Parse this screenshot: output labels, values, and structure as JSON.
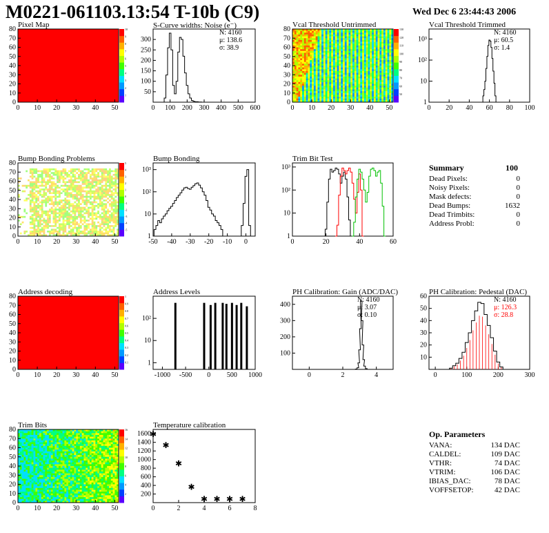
{
  "header": {
    "title": "M0221-061103.13:54 T-10b (C9)",
    "date": "Wed Dec  6 23:44:43 2006"
  },
  "chart_data": [
    {
      "id": "pixel-map",
      "type": "heatmap",
      "title": "Pixel Map",
      "x_ticks": [
        "0",
        "10",
        "20",
        "30",
        "40",
        "50"
      ],
      "y_ticks": [
        "0",
        "10",
        "20",
        "30",
        "40",
        "50",
        "60",
        "70",
        "80"
      ],
      "xlim": [
        0,
        52
      ],
      "ylim": [
        0,
        80
      ],
      "fill": "#ff0000",
      "uniform_value": 10,
      "palette_labels": [
        "1",
        "2",
        "3",
        "4",
        "5",
        "6",
        "7",
        "8",
        "9",
        "10"
      ]
    },
    {
      "id": "scurve-noise",
      "type": "line",
      "title": "S-Curve widths: Noise (e⁻)",
      "x_ticks": [
        "0",
        "100",
        "200",
        "300",
        "400",
        "500",
        "600"
      ],
      "y_ticks": [
        "50",
        "100",
        "150",
        "200",
        "250",
        "300"
      ],
      "xlim": [
        0,
        600
      ],
      "ylim": [
        0,
        350
      ],
      "x": [
        60,
        70,
        80,
        90,
        100,
        110,
        120,
        130,
        140,
        150,
        160,
        170,
        180,
        190,
        200,
        210,
        220,
        230,
        240,
        250,
        260,
        270,
        280,
        290,
        300
      ],
      "values": [
        0,
        20,
        130,
        260,
        330,
        250,
        80,
        40,
        100,
        240,
        310,
        300,
        220,
        140,
        80,
        40,
        20,
        8,
        4,
        2,
        2,
        1,
        1,
        0,
        0
      ],
      "stats": {
        "n": "N: 4160",
        "mu": "μ: 138.6",
        "sigma": "σ: 38.9"
      }
    },
    {
      "id": "vcal-untrimmed",
      "type": "heatmap",
      "title": "Vcal Threshold Untrimmed",
      "x_ticks": [
        "0",
        "10",
        "20",
        "30",
        "40",
        "50"
      ],
      "y_ticks": [
        "0",
        "10",
        "20",
        "30",
        "40",
        "50",
        "60",
        "70",
        "80"
      ],
      "xlim": [
        0,
        52
      ],
      "ylim": [
        0,
        80
      ],
      "palette_labels": [
        "50",
        "60",
        "70",
        "80",
        "90",
        "100",
        "110",
        "120",
        "130"
      ]
    },
    {
      "id": "vcal-trimmed",
      "type": "line",
      "title": "Vcal Threshold Trimmed",
      "x_ticks": [
        "0",
        "20",
        "40",
        "60",
        "80",
        "100"
      ],
      "y_ticks": [
        "1",
        "10",
        "10²",
        "10³"
      ],
      "xlim": [
        0,
        100
      ],
      "ylim_log": [
        1,
        3000
      ],
      "x": [
        52,
        53,
        54,
        55,
        56,
        57,
        58,
        59,
        60,
        61,
        62,
        63,
        64,
        65,
        66,
        67
      ],
      "values": [
        1,
        0,
        2,
        4,
        10,
        40,
        150,
        500,
        900,
        800,
        400,
        120,
        30,
        8,
        2,
        1
      ],
      "stats": {
        "n": "N: 4160",
        "mu": "μ: 60.5",
        "sigma": "σ:  1.4"
      }
    },
    {
      "id": "bump-problems",
      "type": "heatmap",
      "title": "Bump Bonding Problems",
      "x_ticks": [
        "0",
        "10",
        "20",
        "30",
        "40",
        "50"
      ],
      "y_ticks": [
        "0",
        "10",
        "20",
        "30",
        "40",
        "50",
        "60",
        "70",
        "80"
      ],
      "xlim": [
        0,
        52
      ],
      "ylim": [
        0,
        80
      ],
      "palette_labels": [
        "-5",
        "-4",
        "-3",
        "-2",
        "-1",
        "0",
        "1",
        "2",
        "3",
        "4",
        "5"
      ]
    },
    {
      "id": "bump-bonding",
      "type": "line",
      "title": "Bump Bonding",
      "x_ticks": [
        "-50",
        "-40",
        "-30",
        "-20",
        "-10",
        "0"
      ],
      "y_ticks": [
        "1",
        "10",
        "10²",
        "10³"
      ],
      "xlim": [
        -50,
        5
      ],
      "ylim_log": [
        1,
        2000
      ],
      "x": [
        -49,
        -48,
        -47,
        -46,
        -45,
        -44,
        -43,
        -42,
        -41,
        -40,
        -39,
        -38,
        -37,
        -36,
        -35,
        -34,
        -33,
        -32,
        -31,
        -30,
        -29,
        -28,
        -27,
        -26,
        -25,
        -24,
        -23,
        -22,
        -21,
        -20,
        -19,
        -18,
        -17,
        -16,
        -15,
        -14,
        -13,
        -12,
        -11,
        -10,
        -9,
        -8,
        -7,
        -6,
        -5,
        -4,
        -3,
        -2,
        -1,
        0,
        1,
        2
      ],
      "values": [
        2,
        3,
        5,
        4,
        6,
        8,
        10,
        14,
        18,
        22,
        30,
        40,
        55,
        70,
        90,
        120,
        150,
        160,
        140,
        130,
        160,
        190,
        230,
        250,
        200,
        150,
        100,
        70,
        40,
        20,
        15,
        10,
        8,
        5,
        4,
        3,
        2,
        1,
        0,
        0,
        0,
        0,
        0,
        0,
        0,
        0,
        1,
        3,
        30,
        500,
        1000,
        3
      ]
    },
    {
      "id": "trim-bit-test",
      "type": "line",
      "title": "Trim Bit Test",
      "x_ticks": [
        "0",
        "20",
        "40",
        "60"
      ],
      "y_ticks": [
        "1",
        "10",
        "10²",
        "10³"
      ],
      "xlim": [
        0,
        60
      ],
      "ylim_log": [
        1,
        1500
      ],
      "series": [
        {
          "color": "#000000",
          "x": [
            19,
            20,
            21,
            22,
            23,
            24,
            25,
            26,
            27,
            28,
            29,
            30,
            31,
            32,
            33,
            34,
            35
          ],
          "values": [
            1,
            2,
            30,
            300,
            800,
            600,
            700,
            900,
            800,
            500,
            200,
            400,
            600,
            300,
            50,
            5,
            1
          ]
        },
        {
          "color": "#ff0000",
          "x": [
            26,
            27,
            28,
            29,
            30,
            31,
            32,
            33,
            34,
            35,
            36,
            37,
            38,
            39,
            40,
            41,
            42
          ],
          "values": [
            1,
            3,
            60,
            400,
            900,
            700,
            500,
            700,
            900,
            600,
            200,
            40,
            10,
            80,
            500,
            100,
            1
          ]
        },
        {
          "color": "#00c000",
          "x": [
            36,
            37,
            38,
            39,
            40,
            41,
            42,
            43,
            44,
            45,
            46,
            47,
            48,
            49,
            50,
            51,
            52,
            53,
            54,
            55
          ],
          "values": [
            1,
            4,
            50,
            300,
            800,
            600,
            300,
            100,
            30,
            80,
            400,
            800,
            900,
            700,
            400,
            600,
            700,
            200,
            20,
            1
          ]
        }
      ]
    },
    {
      "id": "address-decoding",
      "type": "heatmap",
      "title": "Address decoding",
      "x_ticks": [
        "0",
        "10",
        "20",
        "30",
        "40",
        "50"
      ],
      "y_ticks": [
        "0",
        "10",
        "20",
        "30",
        "40",
        "50",
        "60",
        "70",
        "80"
      ],
      "xlim": [
        0,
        52
      ],
      "ylim": [
        0,
        80
      ],
      "fill": "#ff0000",
      "uniform_value": 1,
      "palette_labels": [
        "0.1",
        "0.2",
        "0.3",
        "0.4",
        "0.5",
        "0.6",
        "0.7",
        "0.8",
        "0.9",
        "1"
      ]
    },
    {
      "id": "address-levels",
      "type": "bar",
      "title": "Address Levels",
      "x_ticks": [
        "-1000",
        "-500",
        "0",
        "500",
        "1000"
      ],
      "y_ticks": [
        "1",
        "10",
        "10²"
      ],
      "xlim": [
        -1200,
        1000
      ],
      "ylim_log": [
        0.5,
        1000
      ],
      "x": [
        -720,
        -100,
        40,
        140,
        300,
        380,
        500,
        600,
        700,
        820
      ],
      "values": [
        500,
        500,
        400,
        500,
        500,
        450,
        500,
        400,
        500,
        350
      ]
    },
    {
      "id": "ph-gain",
      "type": "line",
      "title": "PH Calibration: Gain (ADC/DAC)",
      "x_ticks": [
        "0",
        "2",
        "4"
      ],
      "y_ticks": [
        "100",
        "200",
        "300",
        "400"
      ],
      "xlim": [
        -1,
        5
      ],
      "ylim": [
        0,
        450
      ],
      "x": [
        2.7,
        2.8,
        2.9,
        2.95,
        3.0,
        3.05,
        3.1,
        3.15,
        3.2,
        3.25,
        3.3,
        3.4,
        3.5
      ],
      "values": [
        0,
        2,
        10,
        40,
        120,
        250,
        420,
        300,
        150,
        60,
        20,
        5,
        0
      ],
      "stats": {
        "n": "N: 4160",
        "mu": "μ: 3.07",
        "sigma": "σ: 0.10"
      }
    },
    {
      "id": "ph-pedestal",
      "type": "line",
      "title": "PH Calibration: Pedestal (DAC)",
      "x_ticks": [
        "0",
        "100",
        "200",
        "300"
      ],
      "y_ticks": [
        "10",
        "20",
        "30",
        "40",
        "50",
        "60"
      ],
      "xlim": [
        -20,
        300
      ],
      "ylim": [
        0,
        60
      ],
      "x": [
        50,
        60,
        70,
        80,
        90,
        100,
        110,
        120,
        130,
        140,
        150,
        160,
        170,
        180,
        190,
        200,
        210
      ],
      "values": [
        1,
        3,
        5,
        9,
        14,
        22,
        30,
        40,
        48,
        55,
        54,
        45,
        36,
        26,
        15,
        6,
        2
      ],
      "fit_color": "#ff0000",
      "stats": {
        "n": "N: 4160",
        "mu": "μ:  126.3",
        "sigma": "σ:  28.8"
      }
    },
    {
      "id": "trim-bits",
      "type": "heatmap",
      "title": "Trim Bits",
      "x_ticks": [
        "0",
        "10",
        "20",
        "30",
        "40",
        "50"
      ],
      "y_ticks": [
        "0",
        "10",
        "20",
        "30",
        "40",
        "50",
        "60",
        "70",
        "80"
      ],
      "xlim": [
        0,
        52
      ],
      "ylim": [
        0,
        80
      ],
      "palette_labels": [
        "2",
        "4",
        "6",
        "8",
        "10",
        "12",
        "14",
        "16"
      ]
    },
    {
      "id": "temperature-calibration",
      "type": "scatter",
      "title": "Temperature calibration",
      "x_ticks": [
        "0",
        "2",
        "4",
        "6",
        "8"
      ],
      "y_ticks": [
        "200",
        "400",
        "600",
        "800",
        "1000",
        "1200",
        "1400",
        "1600"
      ],
      "xlim": [
        0,
        8
      ],
      "ylim": [
        0,
        1700
      ],
      "x": [
        0,
        1,
        2,
        3,
        4,
        5,
        6,
        7
      ],
      "values": [
        1600,
        1350,
        920,
        380,
        100,
        100,
        100,
        100
      ]
    }
  ],
  "summary": {
    "title": "Summary",
    "total": "100",
    "rows": [
      {
        "label": "Dead Pixels:",
        "value": "0"
      },
      {
        "label": "Noisy Pixels:",
        "value": "0"
      },
      {
        "label": "Mask defects:",
        "value": "0"
      },
      {
        "label": "Dead Bumps:",
        "value": "1632"
      },
      {
        "label": "Dead Trimbits:",
        "value": "0"
      },
      {
        "label": "Address Probl:",
        "value": "0"
      }
    ]
  },
  "op_params": {
    "title": "Op. Parameters",
    "rows": [
      {
        "label": "VANA:",
        "value": "134 DAC"
      },
      {
        "label": "CALDEL:",
        "value": "109 DAC"
      },
      {
        "label": "VTHR:",
        "value": "74 DAC"
      },
      {
        "label": "VTRIM:",
        "value": "106 DAC"
      },
      {
        "label": "IBIAS_DAC:",
        "value": "78 DAC"
      },
      {
        "label": "VOFFSETOP:",
        "value": "42 DAC"
      }
    ]
  }
}
